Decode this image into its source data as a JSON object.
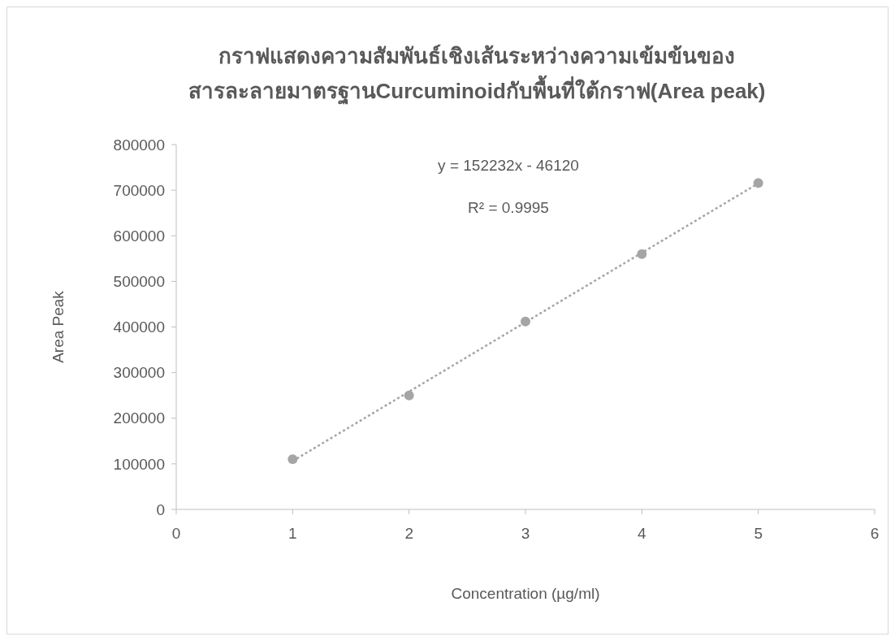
{
  "chart_data": {
    "type": "scatter",
    "title": "กราฟแสดงความสัมพันธ์เชิงเส้นระหว่างความเข้มข้นของ\nสารละลายมาตรฐานCurcuminoidกับพื้นที่ใต้กราฟ(Area peak)",
    "xlabel": "Concentration (µg/ml)",
    "ylabel": "Area Peak",
    "x": [
      1,
      2,
      3,
      4,
      5
    ],
    "series": [
      {
        "color": "#a5a5a5",
        "marker": "circle",
        "values": [
          110000,
          250000,
          412000,
          560000,
          716000
        ]
      },
      {
        "type": "line",
        "color": "#a5a5a5",
        "line_style": "dotted",
        "marker": "none",
        "x": [
          1,
          5
        ],
        "values": [
          106000,
          715000
        ]
      }
    ],
    "annotations": [
      "y = 152232x - 46120",
      "R² = 0.9995"
    ],
    "xlim": [
      0,
      6
    ],
    "xticks": [
      0,
      1,
      2,
      3,
      4,
      5,
      6
    ],
    "ylim": [
      0,
      800000
    ],
    "yticks": [
      0,
      100000,
      200000,
      300000,
      400000,
      500000,
      600000,
      700000,
      800000
    ],
    "grid": false
  }
}
